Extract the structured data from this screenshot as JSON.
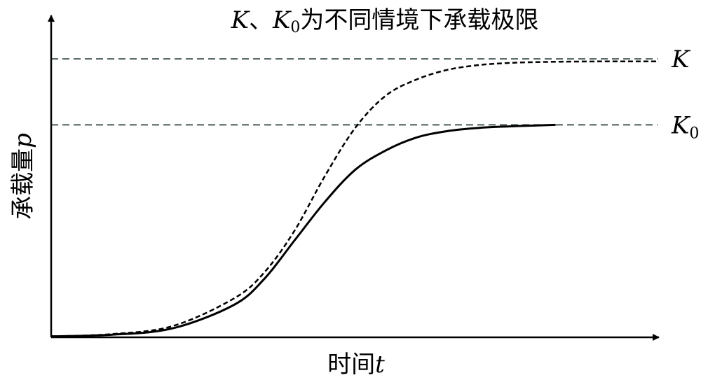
{
  "chart_data": {
    "type": "line",
    "title_parts": {
      "var1": "K",
      "sep": "、",
      "var2": "K",
      "var2_sub": "0",
      "text": "为不同情境下承载极限"
    },
    "xlabel": {
      "text": "时间",
      "var": "t"
    },
    "ylabel": {
      "text": "承载量",
      "var": "p"
    },
    "xlim": [
      0,
      1
    ],
    "ylim": [
      0,
      1
    ],
    "ticks": "none",
    "grid": false,
    "reference_lines": [
      {
        "name": "K",
        "label_main": "K",
        "label_sub": "",
        "y": 0.865,
        "style": "dashed"
      },
      {
        "name": "K0",
        "label_main": "K",
        "label_sub": "0",
        "y": 0.66,
        "style": "dashed"
      }
    ],
    "series": [
      {
        "style": "dashed",
        "x": [
          0.0,
          0.1,
          0.2,
          0.3,
          0.35,
          0.4,
          0.45,
          0.5,
          0.55,
          0.6,
          0.65,
          0.7,
          0.75,
          0.8,
          0.9,
          1.0
        ],
        "y": [
          0.003,
          0.01,
          0.035,
          0.12,
          0.2,
          0.33,
          0.5,
          0.65,
          0.75,
          0.8,
          0.83,
          0.845,
          0.852,
          0.855,
          0.857,
          0.857
        ]
      },
      {
        "style": "solid",
        "x": [
          0.0,
          0.1,
          0.2,
          0.3,
          0.35,
          0.4,
          0.45,
          0.5,
          0.55,
          0.6,
          0.65,
          0.7,
          0.75,
          0.8,
          0.83
        ],
        "y": [
          0.003,
          0.008,
          0.028,
          0.1,
          0.18,
          0.3,
          0.42,
          0.52,
          0.58,
          0.62,
          0.64,
          0.65,
          0.655,
          0.658,
          0.66
        ]
      }
    ]
  }
}
